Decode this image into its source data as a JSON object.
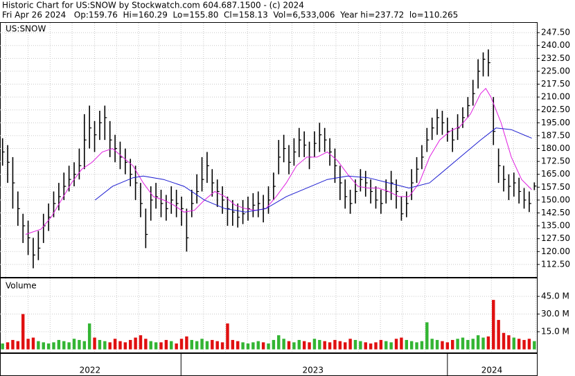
{
  "header": {
    "title": "Historic Chart for US:SNOW by Stockwatch.com 604.687.1500 - (c) 2024",
    "quote": "Fri Apr 26 2024   Op:159.76  Hi=160.29  Lo=155.80  Cl=158.13  Vol=6,533,006  Year hi=237.72  lo=110.265"
  },
  "chart_data": [
    {
      "type": "hlc",
      "title": "US:SNOW",
      "color": "#000000",
      "xlim": [
        0,
        105
      ],
      "xgrid": [
        1.1,
        5.5,
        9.8,
        14.1,
        18.5,
        22.8,
        27.1,
        31.1,
        35.4,
        39.8,
        44.1,
        48.4,
        52.8,
        57.1,
        61.4,
        65.7,
        70.1,
        74.4,
        78.7,
        83.1,
        87.5,
        91.8,
        96.1,
        100.4,
        104.8
      ],
      "high": [
        186,
        182,
        175,
        155,
        142,
        138,
        128,
        132,
        142,
        148,
        155,
        160,
        166,
        170,
        172,
        180,
        200,
        205,
        196,
        202,
        205,
        196,
        188,
        184,
        180,
        174,
        170,
        160,
        145,
        158,
        160,
        156,
        153,
        158,
        156,
        152,
        145,
        156,
        165,
        175,
        178,
        168,
        162,
        158,
        152,
        150,
        148,
        150,
        152,
        154,
        155,
        153,
        158,
        166,
        185,
        188,
        182,
        186,
        192,
        190,
        184,
        190,
        195,
        192,
        186,
        180,
        170,
        162,
        156,
        162,
        168,
        167,
        162,
        158,
        156,
        162,
        167,
        162,
        152,
        155,
        168,
        175,
        182,
        192,
        198,
        203,
        202,
        198,
        192,
        200,
        204,
        210,
        220,
        232,
        236,
        237.72,
        210,
        180,
        170,
        165,
        166,
        163,
        157,
        155,
        160.29
      ],
      "low": [
        170,
        160,
        145,
        135,
        125,
        118,
        110.265,
        115,
        125,
        132,
        140,
        144,
        150,
        155,
        158,
        162,
        168,
        180,
        178,
        185,
        185,
        175,
        172,
        168,
        165,
        158,
        150,
        140,
        122,
        138,
        145,
        140,
        138,
        142,
        140,
        135,
        120,
        140,
        148,
        155,
        160,
        152,
        146,
        142,
        135,
        135,
        134,
        136,
        138,
        140,
        140,
        137,
        142,
        150,
        165,
        172,
        165,
        170,
        175,
        175,
        168,
        175,
        178,
        178,
        170,
        160,
        150,
        145,
        142,
        148,
        155,
        152,
        148,
        145,
        142,
        148,
        150,
        145,
        138,
        140,
        150,
        160,
        168,
        178,
        185,
        188,
        188,
        184,
        178,
        185,
        192,
        198,
        205,
        215,
        222,
        222,
        182,
        160,
        155,
        150,
        152,
        148,
        145,
        143,
        155.8
      ],
      "close": [
        178,
        172,
        160,
        145,
        135,
        128,
        118,
        122,
        135,
        140,
        148,
        152,
        158,
        162,
        165,
        170,
        185,
        192,
        188,
        195,
        198,
        185,
        180,
        175,
        172,
        165,
        160,
        148,
        130,
        150,
        152,
        148,
        145,
        150,
        148,
        145,
        128,
        148,
        155,
        162,
        170,
        160,
        155,
        150,
        145,
        143,
        140,
        142,
        145,
        147,
        148,
        145,
        150,
        158,
        175,
        180,
        172,
        178,
        185,
        182,
        175,
        183,
        188,
        185,
        178,
        170,
        160,
        152,
        148,
        155,
        162,
        160,
        155,
        150,
        148,
        155,
        160,
        155,
        142,
        148,
        160,
        168,
        175,
        185,
        192,
        198,
        195,
        190,
        185,
        192,
        198,
        205,
        212,
        225,
        232,
        230,
        190,
        170,
        162,
        158,
        160,
        155,
        150,
        148,
        158.13
      ],
      "series": [
        {
          "color": "#e020e0",
          "x": [
            5,
            8,
            10,
            12,
            14,
            16,
            18,
            20,
            22,
            24,
            26,
            28,
            30,
            32,
            34,
            36,
            38,
            40,
            42,
            44,
            46,
            48,
            50,
            52,
            54,
            56,
            58,
            60,
            62,
            64,
            66,
            68,
            70,
            72,
            74,
            76,
            78,
            80,
            82,
            84,
            86,
            88,
            90,
            92,
            94,
            95,
            96,
            98,
            100,
            102,
            104
          ],
          "values": [
            130,
            133,
            140,
            150,
            160,
            168,
            172,
            178,
            180,
            175,
            170,
            160,
            152,
            150,
            147,
            143,
            144,
            150,
            155,
            152,
            147,
            145,
            144,
            145,
            152,
            160,
            170,
            175,
            175,
            178,
            173,
            165,
            158,
            157,
            157,
            155,
            152,
            152,
            160,
            175,
            185,
            190,
            193,
            200,
            212,
            215,
            210,
            195,
            175,
            162,
            156
          ]
        },
        {
          "color": "#1a1ad0",
          "x": [
            18.6,
            22,
            26,
            28,
            32,
            36,
            40,
            44,
            48,
            52,
            56,
            60,
            64,
            68,
            72,
            76,
            80,
            84,
            86,
            90,
            94,
            97,
            100,
            104
          ],
          "values": [
            150,
            158,
            163,
            164,
            162,
            158,
            150,
            145,
            143,
            145,
            152,
            157,
            162,
            164,
            163,
            160,
            157,
            160,
            165,
            175,
            185,
            192,
            191,
            186
          ]
        }
      ],
      "ylim": [
        105.2,
        253.2
      ],
      "yticks": [
        {
          "value": 112.5,
          "label": "112.50"
        },
        {
          "value": 120,
          "label": "120.00"
        },
        {
          "value": 127.5,
          "label": "127.50"
        },
        {
          "value": 135,
          "label": "135.00"
        },
        {
          "value": 142.5,
          "label": "142.50"
        },
        {
          "value": 150,
          "label": "150.00"
        },
        {
          "value": 157.5,
          "label": "157.50"
        },
        {
          "value": 165,
          "label": "165.00"
        },
        {
          "value": 172.5,
          "label": "172.50"
        },
        {
          "value": 180,
          "label": "180.00"
        },
        {
          "value": 187.5,
          "label": "187.50"
        },
        {
          "value": 195,
          "label": "195.00"
        },
        {
          "value": 202.5,
          "label": "202.50"
        },
        {
          "value": 210,
          "label": "210.00"
        },
        {
          "value": 217.5,
          "label": "217.50"
        },
        {
          "value": 225,
          "label": "225.00"
        },
        {
          "value": 232.5,
          "label": "232.50"
        },
        {
          "value": 240,
          "label": "240.00"
        },
        {
          "value": 247.5,
          "label": "247.50"
        }
      ],
      "grid": true
    },
    {
      "type": "bar",
      "title": "Volume",
      "up_color": "#33b533",
      "down_color": "#e01010",
      "xlim": [
        0,
        105
      ],
      "values": [
        5,
        6,
        8,
        7,
        30,
        9,
        10,
        7,
        6,
        5,
        6,
        8,
        7,
        6,
        9,
        8,
        7,
        22,
        10,
        8,
        7,
        6,
        9,
        7,
        6,
        8,
        10,
        12,
        9,
        7,
        6,
        6,
        8,
        7,
        5,
        9,
        11,
        8,
        7,
        9,
        7,
        8,
        7,
        6,
        22,
        8,
        7,
        6,
        5,
        6,
        7,
        6,
        5,
        8,
        12,
        9,
        7,
        6,
        8,
        7,
        6,
        9,
        8,
        7,
        6,
        8,
        7,
        6,
        9,
        8,
        7,
        6,
        5,
        6,
        8,
        7,
        6,
        9,
        10,
        8,
        7,
        6,
        7,
        23,
        9,
        8,
        7,
        6,
        8,
        9,
        10,
        8,
        9,
        12,
        10,
        11,
        42,
        25,
        14,
        12,
        10,
        9,
        8,
        9,
        7
      ],
      "ylim": [
        -3.2,
        60.3
      ],
      "yticks": [
        {
          "value": 15,
          "label": "15.0 M"
        },
        {
          "value": 30,
          "label": "30.0 M"
        },
        {
          "value": 45,
          "label": "45.0 M"
        }
      ],
      "xticks": [
        {
          "value": 17.6,
          "label": "2022"
        },
        {
          "value": 61.2,
          "label": "2023"
        },
        {
          "value": 96.2,
          "label": "2024"
        }
      ],
      "year_starts": [
        35.4,
        87.5
      ],
      "grid": true
    }
  ]
}
